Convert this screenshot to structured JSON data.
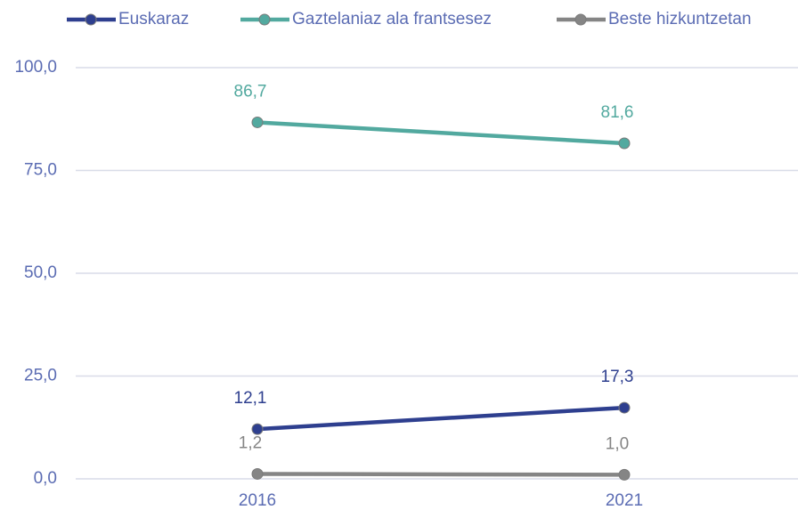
{
  "chart_data": {
    "type": "line",
    "categories": [
      "2016",
      "2021"
    ],
    "series": [
      {
        "name": "Euskaraz",
        "color": "#2e3f8f",
        "values": [
          12.1,
          17.3
        ],
        "value_labels": [
          "12,1",
          "17,3"
        ]
      },
      {
        "name": "Gaztelaniaz ala frantsesez",
        "color": "#52a99f",
        "values": [
          86.7,
          81.6
        ],
        "value_labels": [
          "86,7",
          "81,6"
        ]
      },
      {
        "name": "Beste hizkuntzetan",
        "color": "#858585",
        "values": [
          1.2,
          1.0
        ],
        "value_labels": [
          "1,2",
          "1,0"
        ]
      }
    ],
    "ylim": [
      0,
      100
    ],
    "yticks": [
      {
        "value": 0,
        "label": "0,0"
      },
      {
        "value": 25,
        "label": "25,0"
      },
      {
        "value": 50,
        "label": "50,0"
      },
      {
        "value": 75,
        "label": "75,0"
      },
      {
        "value": 100,
        "label": "100,0"
      }
    ],
    "grid": true,
    "legend": "top"
  }
}
